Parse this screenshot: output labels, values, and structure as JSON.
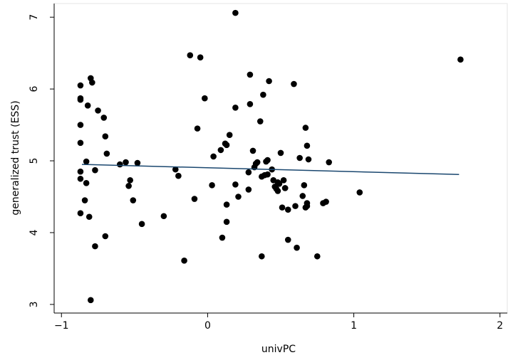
{
  "chart_data": {
    "type": "scatter",
    "x_label": "univPC",
    "y_label": "generalized trust (ESS)",
    "x": [
      -0.87,
      -0.87,
      -0.87,
      -0.87,
      -0.87,
      -0.87,
      -0.87,
      -0.87,
      -0.8,
      -0.79,
      -0.82,
      -0.75,
      -0.71,
      -0.7,
      -0.83,
      -0.83,
      -0.69,
      -0.77,
      -0.84,
      -0.81,
      -0.77,
      -0.7,
      -0.8,
      -0.6,
      -0.56,
      -0.54,
      -0.53,
      -0.51,
      -0.48,
      -0.45,
      -0.3,
      -0.22,
      -0.2,
      -0.16,
      -0.12,
      -0.05,
      -0.09,
      -0.07,
      -0.02,
      0.04,
      0.03,
      0.09,
      0.1,
      0.12,
      0.13,
      0.13,
      0.13,
      0.19,
      0.19,
      0.19,
      0.21,
      0.15,
      0.29,
      0.29,
      0.28,
      0.28,
      0.31,
      0.32,
      0.33,
      0.34,
      0.37,
      0.36,
      0.37,
      0.38,
      0.39,
      0.4,
      0.42,
      0.41,
      0.44,
      0.41,
      0.45,
      0.46,
      0.47,
      0.48,
      0.48,
      0.49,
      0.5,
      0.51,
      0.52,
      0.53,
      0.53,
      0.55,
      0.55,
      0.59,
      0.6,
      0.61,
      0.63,
      0.65,
      0.66,
      0.67,
      0.68,
      0.68,
      0.68,
      0.67,
      0.69,
      0.75,
      0.79,
      0.81,
      0.83,
      1.04,
      1.73
    ],
    "y": [
      6.05,
      5.87,
      5.85,
      5.5,
      5.25,
      4.85,
      4.75,
      4.27,
      6.15,
      6.09,
      5.77,
      5.7,
      5.6,
      5.34,
      4.99,
      4.69,
      5.1,
      4.87,
      4.45,
      4.22,
      3.81,
      3.95,
      3.06,
      4.95,
      4.98,
      4.65,
      4.73,
      4.45,
      4.97,
      4.12,
      4.23,
      4.88,
      4.79,
      3.61,
      6.47,
      6.44,
      4.47,
      5.45,
      5.87,
      5.06,
      4.66,
      5.15,
      3.93,
      5.24,
      5.22,
      4.39,
      4.15,
      7.06,
      5.74,
      4.67,
      4.5,
      5.36,
      6.2,
      5.79,
      4.6,
      4.84,
      5.14,
      4.91,
      4.96,
      4.98,
      4.78,
      5.55,
      3.67,
      5.92,
      4.8,
      4.99,
      6.11,
      4.81,
      4.88,
      5.01,
      4.73,
      4.64,
      4.61,
      4.58,
      4.7,
      4.68,
      5.11,
      4.35,
      4.73,
      4.62,
      4.62,
      3.9,
      4.32,
      6.07,
      4.37,
      3.79,
      5.04,
      4.51,
      4.66,
      5.46,
      5.21,
      4.41,
      4.37,
      4.35,
      5.02,
      3.67,
      4.41,
      4.43,
      4.98,
      4.56,
      6.41
    ],
    "color": "#000000",
    "fit": {
      "x": [
        -0.86,
        1.72
      ],
      "y": [
        4.95,
        4.81
      ],
      "color": "#1a476f"
    },
    "xlim": [
      -1.05,
      2.05
    ],
    "ylim": [
      2.88,
      7.19
    ],
    "xticks": [
      {
        "value": -1,
        "label": "−1"
      },
      0,
      1,
      2
    ],
    "yticks": [
      3,
      4,
      5,
      6,
      7
    ]
  }
}
